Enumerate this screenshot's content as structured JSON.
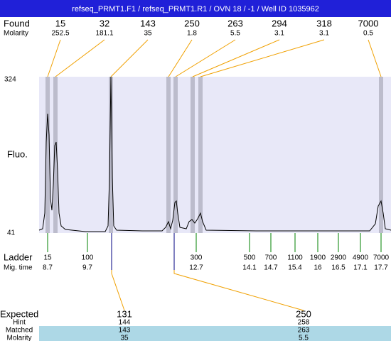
{
  "header": {
    "title": "refseq_PRMT1.F1 / refseq_PRMT1.R1 / OVN 18 / -1 / Well ID 1035962"
  },
  "found": {
    "label": "Found",
    "sizes": [
      15,
      32,
      143,
      250,
      263,
      294,
      318,
      7000
    ],
    "molarity_label": "Molarity",
    "molarity": [
      252.5,
      181.1,
      35,
      1.8,
      5.5,
      3.1,
      3.1,
      0.5
    ]
  },
  "y_axis": {
    "label": "Fluo.",
    "max_label": "324",
    "min_label": "41"
  },
  "ladder": {
    "label": "Ladder",
    "sizes": [
      15,
      100,
      300,
      500,
      700,
      1100,
      1900,
      2900,
      4900,
      7000
    ],
    "mig_label": "Mig. time",
    "times": [
      8.7,
      9.7,
      12.7,
      14.1,
      14.7,
      15.4,
      16,
      16.5,
      17.1,
      17.7
    ]
  },
  "expected": {
    "label": "Expected",
    "hint_label": "Hint",
    "matched_label": "Matched",
    "molarity_label": "Molarity",
    "columns": [
      {
        "expected": 131,
        "hint": 144,
        "matched": 143,
        "molarity": 35
      },
      {
        "expected": 250,
        "hint": 258,
        "matched": 263,
        "molarity": 5.5
      }
    ]
  }
}
